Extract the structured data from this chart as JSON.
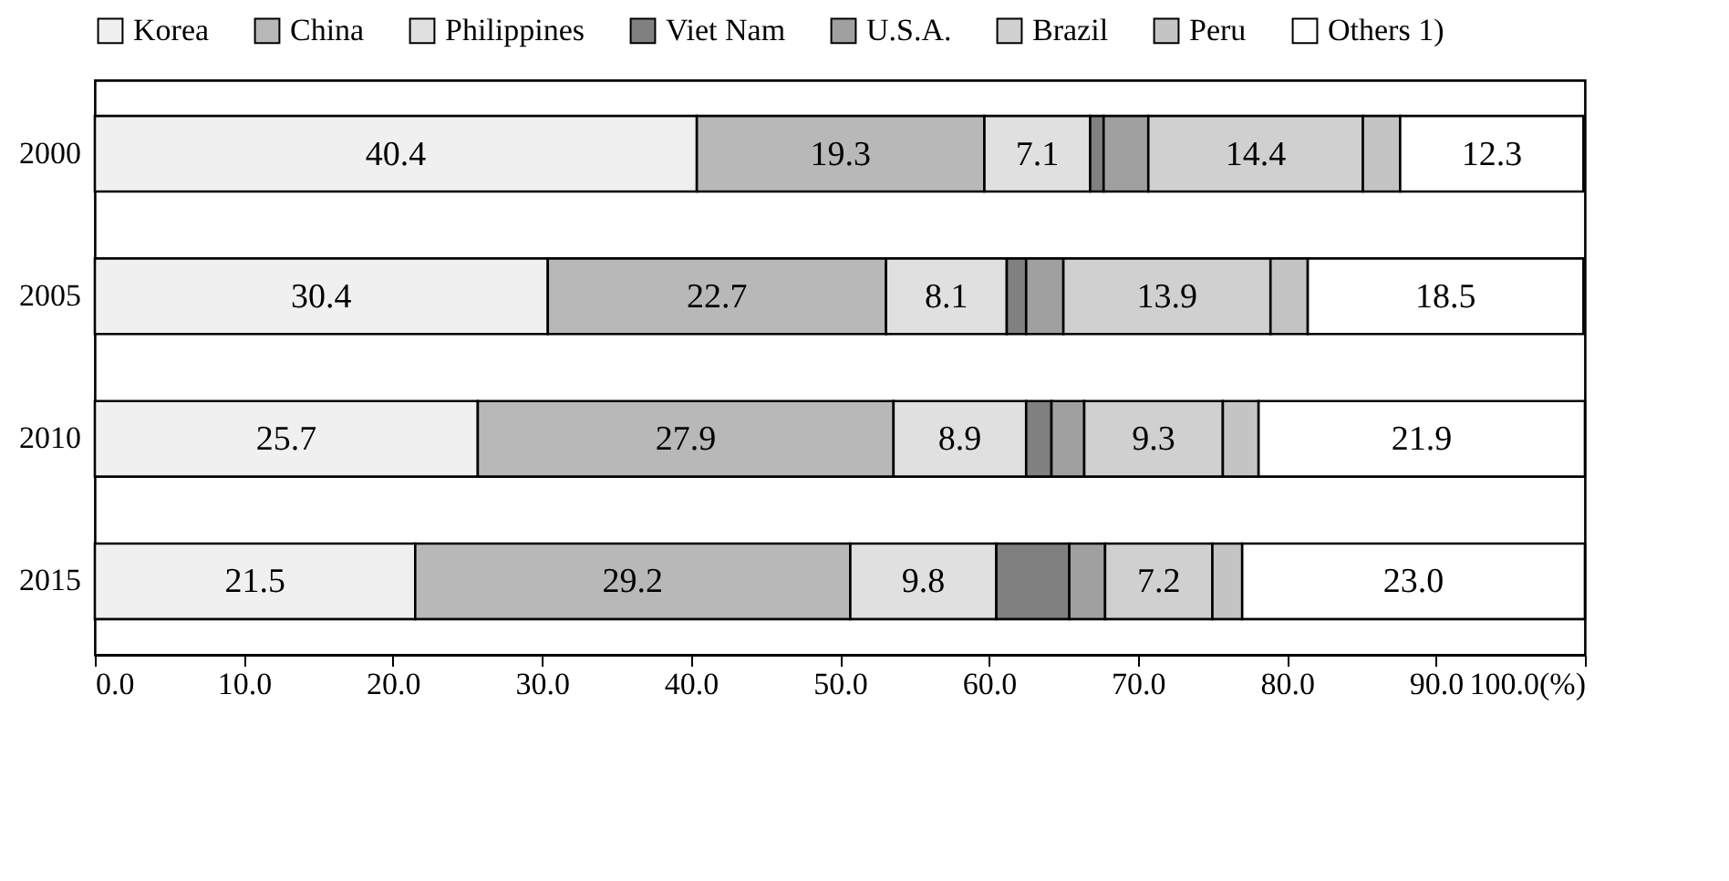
{
  "chart_data": {
    "type": "bar",
    "orientation": "horizontal",
    "stacked": true,
    "categories": [
      "2000",
      "2005",
      "2010",
      "2015"
    ],
    "series": [
      {
        "name": "Korea",
        "color": "#f0f0f0",
        "values": [
          40.4,
          30.4,
          25.7,
          21.5
        ],
        "value_labels": [
          "40.4",
          "30.4",
          "25.7",
          "21.5"
        ]
      },
      {
        "name": "China",
        "color": "#b8b8b8",
        "values": [
          19.3,
          22.7,
          27.9,
          29.2
        ],
        "value_labels": [
          "19.3",
          "22.7",
          "27.9",
          "29.2"
        ]
      },
      {
        "name": "Philippines",
        "color": "#e0e0e0",
        "values": [
          7.1,
          8.1,
          8.9,
          9.8
        ],
        "value_labels": [
          "7.1",
          "8.1",
          "8.9",
          "9.8"
        ]
      },
      {
        "name": "Viet Nam",
        "color": "#808080",
        "values": [
          0.9,
          1.3,
          1.7,
          4.9
        ],
        "value_labels": [
          null,
          null,
          null,
          null
        ]
      },
      {
        "name": "U.S.A.",
        "color": "#a0a0a0",
        "values": [
          3.0,
          2.5,
          2.2,
          2.4
        ],
        "value_labels": [
          null,
          null,
          null,
          null
        ]
      },
      {
        "name": "Brazil",
        "color": "#d0d0d0",
        "values": [
          14.4,
          13.9,
          9.3,
          7.2
        ],
        "value_labels": [
          "14.4",
          "13.9",
          "9.3",
          "7.2"
        ]
      },
      {
        "name": "Peru",
        "color": "#c4c4c4",
        "values": [
          2.5,
          2.5,
          2.4,
          2.0
        ],
        "value_labels": [
          null,
          null,
          null,
          null
        ]
      },
      {
        "name": "Others 1)",
        "color": "#ffffff",
        "values": [
          12.3,
          18.5,
          21.9,
          23.0
        ],
        "value_labels": [
          "12.3",
          "18.5",
          "21.9",
          "23.0"
        ]
      }
    ],
    "xlim": [
      0,
      100
    ],
    "xticks": [
      {
        "value": 0,
        "label": "0.0"
      },
      {
        "value": 10,
        "label": "10.0"
      },
      {
        "value": 20,
        "label": "20.0"
      },
      {
        "value": 30,
        "label": "30.0"
      },
      {
        "value": 40,
        "label": "40.0"
      },
      {
        "value": 50,
        "label": "50.0"
      },
      {
        "value": 60,
        "label": "60.0"
      },
      {
        "value": 70,
        "label": "70.0"
      },
      {
        "value": 80,
        "label": "80.0"
      },
      {
        "value": 90,
        "label": "90.0"
      },
      {
        "value": 100,
        "label": "100.0(%)"
      }
    ],
    "legend": "top",
    "grid": false
  }
}
